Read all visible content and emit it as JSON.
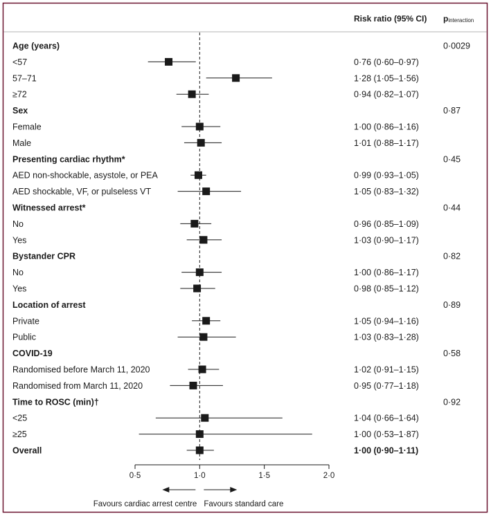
{
  "header": {
    "rr_title": "Risk ratio (95% CI)",
    "p_main": "p",
    "p_sub": "interaction"
  },
  "chart_data": {
    "type": "forest",
    "xlim": [
      0.5,
      2.0
    ],
    "xticks": [
      "0·5",
      "1·0",
      "1·5",
      "2·0"
    ],
    "xtick_values": [
      0.5,
      1.0,
      1.5,
      2.0
    ],
    "reference_line": 1.0,
    "favours_left": "Favours cardiac arrest centre",
    "favours_right": "Favours standard care",
    "rows": [
      {
        "kind": "header",
        "label": "Age (years)",
        "p": "0·0029"
      },
      {
        "kind": "item",
        "label": "<57",
        "rr": 0.76,
        "lo": 0.6,
        "hi": 0.97,
        "text": "0·76 (0·60–0·97)"
      },
      {
        "kind": "item",
        "label": "57–71",
        "rr": 1.28,
        "lo": 1.05,
        "hi": 1.56,
        "text": "1·28 (1·05–1·56)"
      },
      {
        "kind": "item",
        "label": "≥72",
        "rr": 0.94,
        "lo": 0.82,
        "hi": 1.07,
        "text": "0·94 (0·82–1·07)"
      },
      {
        "kind": "header",
        "label": "Sex",
        "p": "0·87"
      },
      {
        "kind": "item",
        "label": "Female",
        "rr": 1.0,
        "lo": 0.86,
        "hi": 1.16,
        "text": "1·00 (0·86–1·16)"
      },
      {
        "kind": "item",
        "label": "Male",
        "rr": 1.01,
        "lo": 0.88,
        "hi": 1.17,
        "text": "1·01 (0·88–1·17)"
      },
      {
        "kind": "header",
        "label": "Presenting cardiac rhythm*",
        "p": "0·45"
      },
      {
        "kind": "item",
        "label": "AED non-shockable, asystole, or PEA",
        "rr": 0.99,
        "lo": 0.93,
        "hi": 1.05,
        "text": "0·99 (0·93–1·05)"
      },
      {
        "kind": "item",
        "label": "AED shockable, VF, or pulseless VT",
        "rr": 1.05,
        "lo": 0.83,
        "hi": 1.32,
        "text": "1·05 (0·83–1·32)"
      },
      {
        "kind": "header",
        "label": "Witnessed arrest*",
        "p": "0·44"
      },
      {
        "kind": "item",
        "label": "No",
        "rr": 0.96,
        "lo": 0.85,
        "hi": 1.09,
        "text": "0·96 (0·85–1·09)"
      },
      {
        "kind": "item",
        "label": "Yes",
        "rr": 1.03,
        "lo": 0.9,
        "hi": 1.17,
        "text": "1·03 (0·90–1·17)"
      },
      {
        "kind": "header",
        "label": "Bystander CPR",
        "p": "0·82"
      },
      {
        "kind": "item",
        "label": "No",
        "rr": 1.0,
        "lo": 0.86,
        "hi": 1.17,
        "text": "1·00 (0·86–1·17)"
      },
      {
        "kind": "item",
        "label": "Yes",
        "rr": 0.98,
        "lo": 0.85,
        "hi": 1.12,
        "text": "0·98 (0·85–1·12)"
      },
      {
        "kind": "header",
        "label": "Location of arrest",
        "p": "0·89"
      },
      {
        "kind": "item",
        "label": "Private",
        "rr": 1.05,
        "lo": 0.94,
        "hi": 1.16,
        "text": "1·05 (0·94–1·16)"
      },
      {
        "kind": "item",
        "label": "Public",
        "rr": 1.03,
        "lo": 0.83,
        "hi": 1.28,
        "text": "1·03 (0·83–1·28)"
      },
      {
        "kind": "header",
        "label": "COVID-19",
        "p": "0·58"
      },
      {
        "kind": "item",
        "label": "Randomised before March 11, 2020",
        "rr": 1.02,
        "lo": 0.91,
        "hi": 1.15,
        "text": "1·02 (0·91–1·15)"
      },
      {
        "kind": "item",
        "label": "Randomised from March 11, 2020",
        "rr": 0.95,
        "lo": 0.77,
        "hi": 1.18,
        "text": "0·95 (0·77–1·18)"
      },
      {
        "kind": "header",
        "label": "Time to ROSC (min)†",
        "p": "0·92"
      },
      {
        "kind": "item",
        "label": "<25",
        "rr": 1.04,
        "lo": 0.66,
        "hi": 1.64,
        "text": "1·04 (0·66–1·64)"
      },
      {
        "kind": "item",
        "label": "≥25",
        "rr": 1.0,
        "lo": 0.53,
        "hi": 1.87,
        "text": "1·00 (0·53–1·87)"
      },
      {
        "kind": "overall",
        "label": "Overall",
        "rr": 1.0,
        "lo": 0.9,
        "hi": 1.11,
        "text": "1·00 (0·90–1·11)"
      }
    ]
  }
}
